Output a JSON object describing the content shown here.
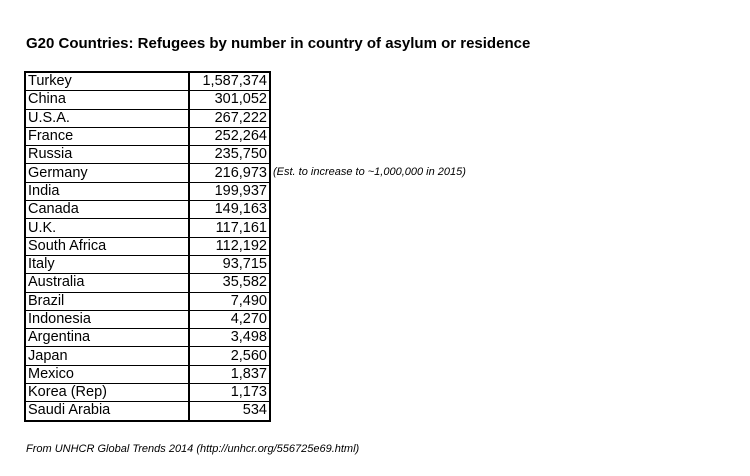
{
  "header": {
    "title": "G20 Countries: Refugees by number in country of asylum or residence"
  },
  "table": {
    "rows": [
      [
        "Turkey",
        "1,587,374"
      ],
      [
        "China",
        "301,052"
      ],
      [
        "U.S.A.",
        "267,222"
      ],
      [
        "France",
        "252,264"
      ],
      [
        "Russia",
        "235,750"
      ],
      [
        "Germany",
        "216,973"
      ],
      [
        "India",
        "199,937"
      ],
      [
        "Canada",
        "149,163"
      ],
      [
        "U.K.",
        "117,161"
      ],
      [
        "South Africa",
        "112,192"
      ],
      [
        "Italy",
        "93,715"
      ],
      [
        "Australia",
        "35,582"
      ],
      [
        "Brazil",
        "7,490"
      ],
      [
        "Indonesia",
        "4,270"
      ],
      [
        "Argentina",
        "3,498"
      ],
      [
        "Japan",
        "2,560"
      ],
      [
        "Mexico",
        "1,837"
      ],
      [
        "Korea (Rep)",
        "1,173"
      ],
      [
        "Saudi Arabia",
        "534"
      ]
    ]
  },
  "annotation": {
    "row": 5,
    "text": "(Est. to increase to ~1,000,000 in 2015)"
  },
  "footer": {
    "source": "From UNHCR Global Trends 2014 (http://unhcr.org/556725e69.html)"
  }
}
